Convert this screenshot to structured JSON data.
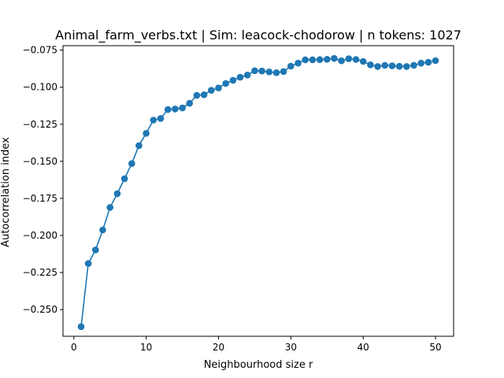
{
  "chart_data": {
    "type": "line",
    "title": "Animal_farm_verbs.txt | Sim: leacock-chodorow | n tokens: 1027",
    "xlabel": "Neighbourhood size r",
    "ylabel": "Autocorrelation index",
    "xlim": [
      -1.5,
      52.5
    ],
    "ylim": [
      -0.268,
      -0.072
    ],
    "x_ticks": [
      0,
      10,
      20,
      30,
      40,
      50
    ],
    "y_ticks": [
      -0.25,
      -0.225,
      -0.2,
      -0.175,
      -0.15,
      -0.125,
      -0.1,
      -0.075
    ],
    "y_tick_labels": [
      "−0.250",
      "−0.225",
      "−0.200",
      "−0.175",
      "−0.150",
      "−0.125",
      "−0.100",
      "−0.075"
    ],
    "grid": false,
    "series_color": "#1f77b4",
    "series": [
      {
        "x": [
          1,
          2,
          3,
          4,
          5,
          6,
          7,
          8,
          9,
          10,
          11,
          12,
          13,
          14,
          15,
          16,
          17,
          18,
          19,
          20,
          21,
          22,
          23,
          24,
          25,
          26,
          27,
          28,
          29,
          30,
          31,
          32,
          33,
          34,
          35,
          36,
          37,
          38,
          39,
          40,
          41,
          42,
          43,
          44,
          45,
          46,
          47,
          48,
          49,
          50
        ],
        "values": [
          -0.2615,
          -0.2189,
          -0.2098,
          -0.1963,
          -0.1811,
          -0.1718,
          -0.1617,
          -0.1515,
          -0.1394,
          -0.1311,
          -0.1222,
          -0.1211,
          -0.1151,
          -0.1147,
          -0.114,
          -0.1109,
          -0.1055,
          -0.1051,
          -0.1021,
          -0.1005,
          -0.0975,
          -0.0953,
          -0.0933,
          -0.0918,
          -0.0889,
          -0.0891,
          -0.0897,
          -0.0902,
          -0.0894,
          -0.0858,
          -0.0838,
          -0.0815,
          -0.0815,
          -0.0814,
          -0.0812,
          -0.0806,
          -0.0822,
          -0.0808,
          -0.0813,
          -0.0826,
          -0.0849,
          -0.086,
          -0.0853,
          -0.0856,
          -0.0859,
          -0.086,
          -0.0852,
          -0.0838,
          -0.0832,
          -0.0821
        ]
      }
    ]
  }
}
